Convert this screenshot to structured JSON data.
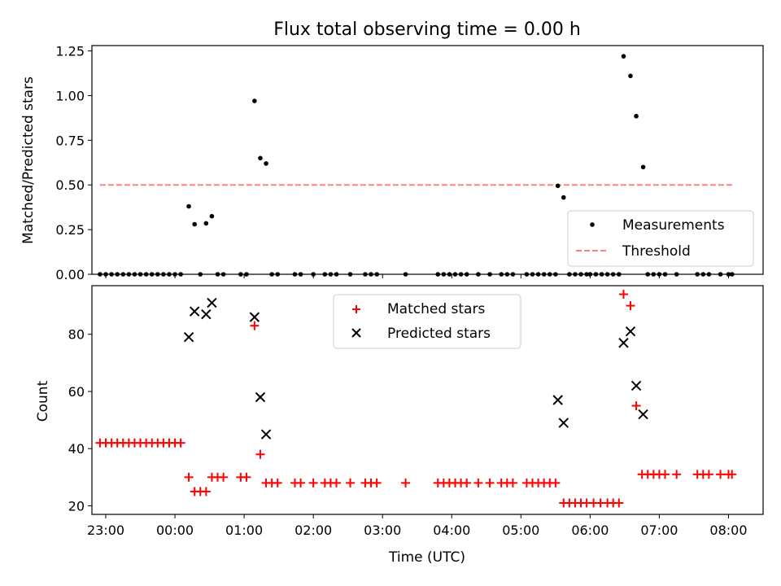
{
  "chart_data": [
    {
      "type": "scatter",
      "title": "Flux total observing time = 0.00 h",
      "xlabel": "",
      "ylabel": "Matched/Predicted stars",
      "xlim": [
        "22:48",
        "08:30"
      ],
      "ylim": [
        0,
        1.28
      ],
      "yticks": [
        "0.00",
        "0.25",
        "0.50",
        "0.75",
        "1.00",
        "1.25"
      ],
      "legend_position": "lower-right",
      "grid": false,
      "series": [
        {
          "name": "Measurements",
          "marker": "dot",
          "color": "#000000",
          "points": [
            [
              "22:55",
              0
            ],
            [
              "23:00",
              0
            ],
            [
              "23:05",
              0
            ],
            [
              "23:10",
              0
            ],
            [
              "23:15",
              0
            ],
            [
              "23:20",
              0
            ],
            [
              "23:25",
              0
            ],
            [
              "23:30",
              0
            ],
            [
              "23:35",
              0
            ],
            [
              "23:40",
              0
            ],
            [
              "23:45",
              0
            ],
            [
              "23:50",
              0
            ],
            [
              "23:55",
              0
            ],
            [
              "00:00",
              0
            ],
            [
              "00:05",
              0
            ],
            [
              "00:12",
              0.38
            ],
            [
              "00:17",
              0.28
            ],
            [
              "00:22",
              0
            ],
            [
              "00:27",
              0.285
            ],
            [
              "00:32",
              0.325
            ],
            [
              "00:37",
              0
            ],
            [
              "00:42",
              0
            ],
            [
              "00:57",
              0
            ],
            [
              "01:02",
              0
            ],
            [
              "01:09",
              0.97
            ],
            [
              "01:14",
              0.65
            ],
            [
              "01:19",
              0.62
            ],
            [
              "01:24",
              0
            ],
            [
              "01:29",
              0
            ],
            [
              "01:44",
              0
            ],
            [
              "01:49",
              0
            ],
            [
              "02:00",
              0
            ],
            [
              "02:10",
              0
            ],
            [
              "02:15",
              0
            ],
            [
              "02:20",
              0
            ],
            [
              "02:32",
              0
            ],
            [
              "02:45",
              0
            ],
            [
              "02:50",
              0
            ],
            [
              "02:55",
              0
            ],
            [
              "03:20",
              0
            ],
            [
              "03:48",
              0
            ],
            [
              "03:53",
              0
            ],
            [
              "03:58",
              0
            ],
            [
              "04:03",
              0
            ],
            [
              "04:08",
              0
            ],
            [
              "04:13",
              0
            ],
            [
              "04:23",
              0
            ],
            [
              "04:33",
              0
            ],
            [
              "04:43",
              0
            ],
            [
              "04:48",
              0
            ],
            [
              "04:53",
              0
            ],
            [
              "05:05",
              0
            ],
            [
              "05:10",
              0
            ],
            [
              "05:15",
              0
            ],
            [
              "05:20",
              0
            ],
            [
              "05:25",
              0
            ],
            [
              "05:30",
              0
            ],
            [
              "05:32",
              0.495
            ],
            [
              "05:37",
              0.43
            ],
            [
              "05:42",
              0
            ],
            [
              "05:47",
              0
            ],
            [
              "05:52",
              0
            ],
            [
              "05:57",
              0
            ],
            [
              "06:00",
              0
            ],
            [
              "06:05",
              0
            ],
            [
              "06:10",
              0
            ],
            [
              "06:15",
              0
            ],
            [
              "06:20",
              0
            ],
            [
              "06:25",
              0
            ],
            [
              "06:29",
              1.22
            ],
            [
              "06:35",
              1.11
            ],
            [
              "06:40",
              0.885
            ],
            [
              "06:46",
              0.6
            ],
            [
              "06:50",
              0
            ],
            [
              "06:55",
              0
            ],
            [
              "07:00",
              0
            ],
            [
              "07:05",
              0
            ],
            [
              "07:15",
              0
            ],
            [
              "07:33",
              0
            ],
            [
              "07:38",
              0
            ],
            [
              "07:43",
              0
            ],
            [
              "07:53",
              0
            ],
            [
              "08:00",
              0
            ],
            [
              "08:03",
              0
            ]
          ]
        },
        {
          "name": "Threshold",
          "line_style": "dashed",
          "color": "#ff8080",
          "points": [
            [
              "22:55",
              0.5
            ],
            [
              "08:03",
              0.5
            ]
          ]
        }
      ]
    },
    {
      "type": "scatter",
      "xlabel": "Time (UTC)",
      "ylabel": "Count",
      "xlim": [
        "22:48",
        "08:30"
      ],
      "ylim": [
        17,
        97
      ],
      "xticks": [
        "23:00",
        "00:00",
        "01:00",
        "02:00",
        "03:00",
        "04:00",
        "05:00",
        "06:00",
        "07:00",
        "08:00"
      ],
      "yticks": [
        "20",
        "40",
        "60",
        "80"
      ],
      "legend_position": "top-center",
      "grid": false,
      "series": [
        {
          "name": "Matched stars",
          "marker": "plus",
          "color": "#ff0000",
          "points": [
            [
              "22:55",
              42
            ],
            [
              "23:00",
              42
            ],
            [
              "23:05",
              42
            ],
            [
              "23:10",
              42
            ],
            [
              "23:15",
              42
            ],
            [
              "23:20",
              42
            ],
            [
              "23:25",
              42
            ],
            [
              "23:30",
              42
            ],
            [
              "23:35",
              42
            ],
            [
              "23:40",
              42
            ],
            [
              "23:45",
              42
            ],
            [
              "23:50",
              42
            ],
            [
              "23:55",
              42
            ],
            [
              "00:00",
              42
            ],
            [
              "00:05",
              42
            ],
            [
              "00:12",
              30
            ],
            [
              "00:17",
              25
            ],
            [
              "00:22",
              25
            ],
            [
              "00:27",
              25
            ],
            [
              "00:32",
              30
            ],
            [
              "00:37",
              30
            ],
            [
              "00:42",
              30
            ],
            [
              "00:57",
              30
            ],
            [
              "01:02",
              30
            ],
            [
              "01:09",
              83
            ],
            [
              "01:14",
              38
            ],
            [
              "01:19",
              28
            ],
            [
              "01:24",
              28
            ],
            [
              "01:29",
              28
            ],
            [
              "01:44",
              28
            ],
            [
              "01:49",
              28
            ],
            [
              "02:00",
              28
            ],
            [
              "02:10",
              28
            ],
            [
              "02:15",
              28
            ],
            [
              "02:20",
              28
            ],
            [
              "02:32",
              28
            ],
            [
              "02:45",
              28
            ],
            [
              "02:50",
              28
            ],
            [
              "02:55",
              28
            ],
            [
              "03:20",
              28
            ],
            [
              "03:48",
              28
            ],
            [
              "03:53",
              28
            ],
            [
              "03:58",
              28
            ],
            [
              "04:03",
              28
            ],
            [
              "04:08",
              28
            ],
            [
              "04:13",
              28
            ],
            [
              "04:23",
              28
            ],
            [
              "04:33",
              28
            ],
            [
              "04:43",
              28
            ],
            [
              "04:48",
              28
            ],
            [
              "04:53",
              28
            ],
            [
              "05:05",
              28
            ],
            [
              "05:10",
              28
            ],
            [
              "05:15",
              28
            ],
            [
              "05:20",
              28
            ],
            [
              "05:25",
              28
            ],
            [
              "05:30",
              28
            ],
            [
              "05:37",
              21
            ],
            [
              "05:42",
              21
            ],
            [
              "05:47",
              21
            ],
            [
              "05:52",
              21
            ],
            [
              "05:57",
              21
            ],
            [
              "06:03",
              21
            ],
            [
              "06:09",
              21
            ],
            [
              "06:15",
              21
            ],
            [
              "06:20",
              21
            ],
            [
              "06:25",
              21
            ],
            [
              "06:29",
              94
            ],
            [
              "06:35",
              90
            ],
            [
              "06:40",
              55
            ],
            [
              "06:45",
              31
            ],
            [
              "06:50",
              31
            ],
            [
              "06:55",
              31
            ],
            [
              "07:00",
              31
            ],
            [
              "07:05",
              31
            ],
            [
              "07:15",
              31
            ],
            [
              "07:33",
              31
            ],
            [
              "07:38",
              31
            ],
            [
              "07:43",
              31
            ],
            [
              "07:53",
              31
            ],
            [
              "08:00",
              31
            ],
            [
              "08:03",
              31
            ]
          ]
        },
        {
          "name": "Predicted stars",
          "marker": "x",
          "color": "#000000",
          "points": [
            [
              "00:12",
              79
            ],
            [
              "00:17",
              88
            ],
            [
              "00:27",
              87
            ],
            [
              "00:32",
              91
            ],
            [
              "01:09",
              86
            ],
            [
              "01:14",
              58
            ],
            [
              "01:19",
              45
            ],
            [
              "05:32",
              57
            ],
            [
              "05:37",
              49
            ],
            [
              "06:29",
              77
            ],
            [
              "06:35",
              81
            ],
            [
              "06:40",
              62
            ],
            [
              "06:46",
              52
            ]
          ]
        }
      ]
    }
  ]
}
